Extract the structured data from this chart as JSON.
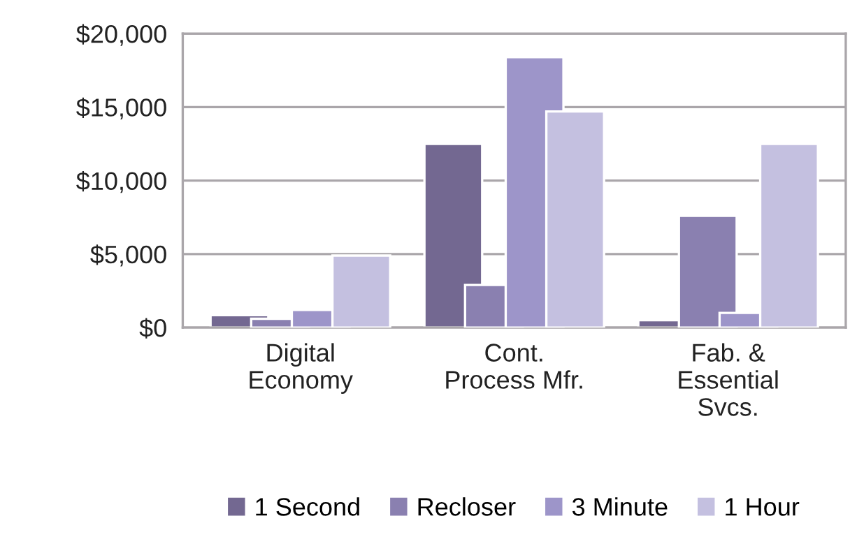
{
  "chart_data": {
    "type": "bar",
    "categories": [
      "Digital\nEconomy",
      "Cont.\nProcess Mfr.",
      "Fab. &\nEssential\nSvcs."
    ],
    "series": [
      {
        "name": "1 Second",
        "color": "#736891",
        "values": [
          850,
          12500,
          500
        ]
      },
      {
        "name": "Recloser",
        "color": "#8a80b0",
        "values": [
          600,
          2900,
          7600
        ]
      },
      {
        "name": "3 Minute",
        "color": "#9d95c9",
        "values": [
          1200,
          18400,
          1000
        ]
      },
      {
        "name": "1 Hour",
        "color": "#c4c0e0",
        "values": [
          4900,
          14700,
          12500
        ]
      }
    ],
    "ylim": [
      0,
      20000
    ],
    "yticks": [
      {
        "value": 0,
        "label": "$0"
      },
      {
        "value": 5000,
        "label": "$5,000"
      },
      {
        "value": 10000,
        "label": "$10,000"
      },
      {
        "value": 15000,
        "label": "$15,000"
      },
      {
        "value": 20000,
        "label": "$20,000"
      }
    ],
    "grid": "y",
    "legend": "bottom"
  }
}
